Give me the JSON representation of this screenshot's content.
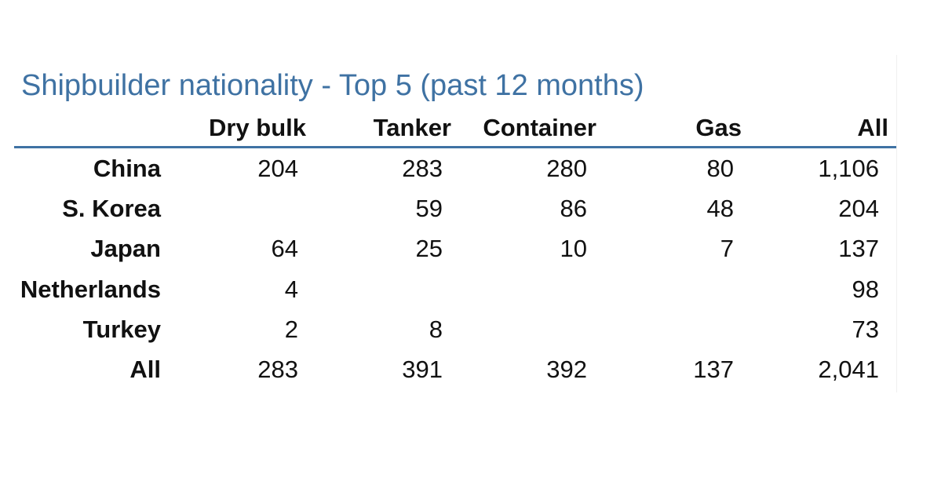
{
  "title": "Shipbuilder nationality - Top 5 (past 12 months)",
  "table": {
    "columns": [
      "Dry bulk",
      "Tanker",
      "Container",
      "Gas",
      "All"
    ],
    "rows": [
      {
        "label": "China",
        "cells": [
          "204",
          "283",
          "280",
          "80",
          "1,106"
        ]
      },
      {
        "label": "S. Korea",
        "cells": [
          null,
          "59",
          "86",
          "48",
          "204"
        ]
      },
      {
        "label": "Japan",
        "cells": [
          "64",
          "25",
          "10",
          "7",
          "137"
        ]
      },
      {
        "label": "Netherlands",
        "cells": [
          "4",
          null,
          null,
          null,
          "98"
        ]
      },
      {
        "label": "Turkey",
        "cells": [
          "2",
          "8",
          null,
          null,
          "73"
        ]
      },
      {
        "label": "All",
        "cells": [
          "283",
          "391",
          "392",
          "137",
          "2,041"
        ]
      }
    ]
  }
}
